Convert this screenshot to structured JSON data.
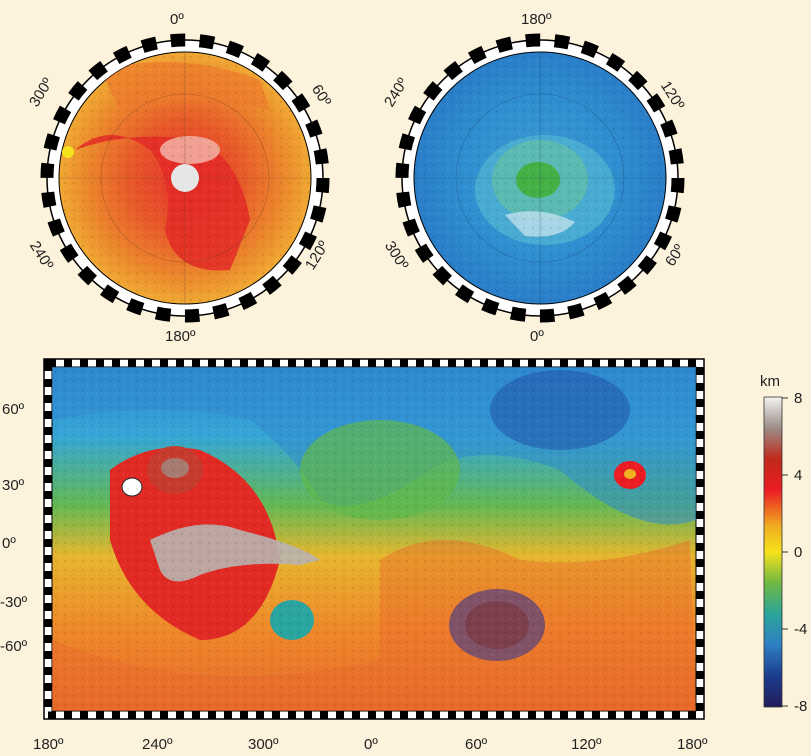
{
  "north_polar_map": {
    "top_label": "0º",
    "bottom_label": "180º",
    "upper_left_label": "300º",
    "upper_right_label": "60º",
    "lower_left_label": "240º",
    "lower_right_label": "120º"
  },
  "south_polar_map": {
    "top_label": "180º",
    "bottom_label": "0º",
    "upper_left_label": "240º",
    "upper_right_label": "120º",
    "lower_left_label": "300º",
    "lower_right_label": "60º"
  },
  "global_map": {
    "latitude_labels": [
      "60º",
      "30º",
      "0º",
      "-30º",
      "-60º"
    ],
    "longitude_labels": [
      "180º",
      "240º",
      "300º",
      "0º",
      "60º",
      "120º",
      "180º"
    ]
  },
  "color_scale": {
    "unit": "km",
    "tick_labels": [
      "8",
      "4",
      "0",
      "-4",
      "-8"
    ],
    "colors": [
      "#f4f4f4",
      "#9b8d86",
      "#c02a1c",
      "#ec1c24",
      "#f0b020",
      "#f6e21c",
      "#6fb842",
      "#2aa59a",
      "#2f7fc3",
      "#1b3c8c",
      "#231c5a"
    ]
  }
}
